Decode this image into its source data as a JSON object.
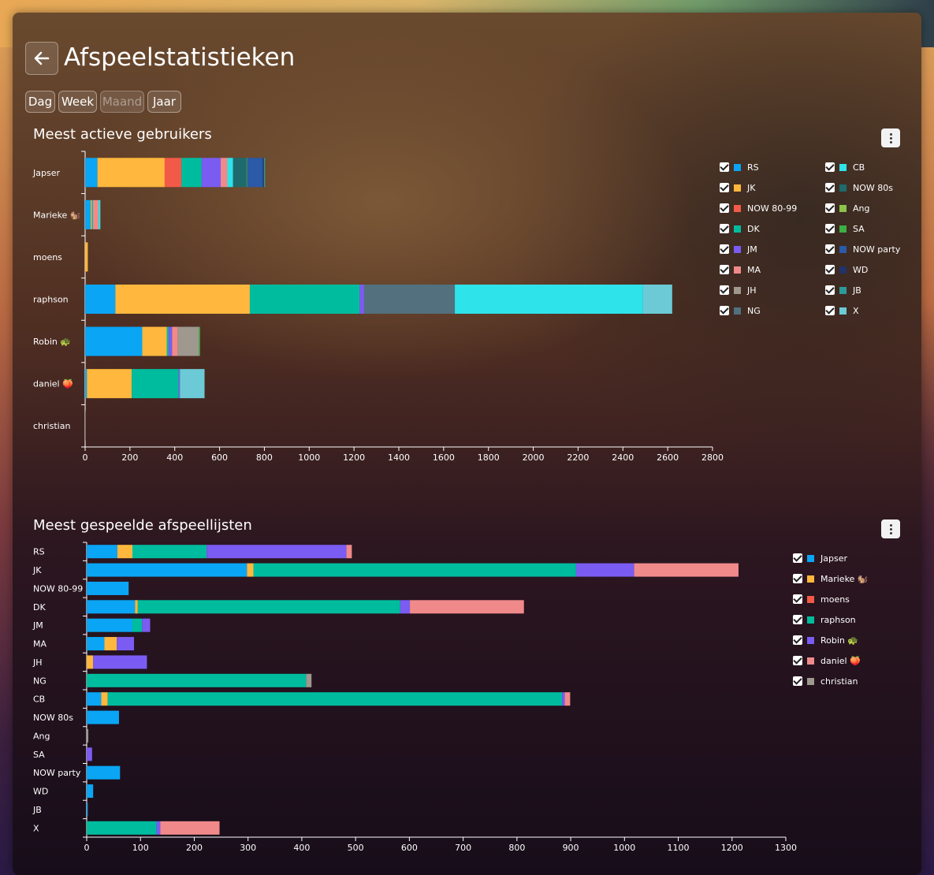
{
  "page": {
    "title": "Afspeelstatistieken"
  },
  "periods": [
    {
      "label": "Dag",
      "disabled": false
    },
    {
      "label": "Week",
      "disabled": false
    },
    {
      "label": "Maand",
      "disabled": true
    },
    {
      "label": "Jaar",
      "disabled": false
    }
  ],
  "chart_data": [
    {
      "type": "bar",
      "orientation": "horizontal",
      "stacked": true,
      "title": "Meest actieve gebruikers",
      "categories": [
        "Japser",
        "Marieke 🐿️",
        "moens",
        "raphson",
        "Robin 🐢",
        "daniel 🍑",
        "christian"
      ],
      "xlim": [
        0,
        2800
      ],
      "xticks": [
        0,
        200,
        400,
        600,
        800,
        1000,
        1200,
        1400,
        1600,
        1800,
        2000,
        2200,
        2400,
        2600,
        2800
      ],
      "legend_position": "right",
      "series": [
        {
          "name": "RS",
          "color": "#0aa5f5",
          "values": [
            55,
            25,
            0,
            135,
            255,
            8,
            0
          ]
        },
        {
          "name": "JK",
          "color": "#ffb83d",
          "values": [
            300,
            5,
            12,
            600,
            110,
            200,
            0
          ]
        },
        {
          "name": "NOW 80-99",
          "color": "#f25a48",
          "values": [
            75,
            0,
            0,
            0,
            0,
            0,
            0
          ]
        },
        {
          "name": "DK",
          "color": "#00bc9e",
          "values": [
            90,
            5,
            0,
            490,
            8,
            210,
            0
          ]
        },
        {
          "name": "JM",
          "color": "#7b5cf2",
          "values": [
            85,
            0,
            0,
            20,
            15,
            5,
            0
          ]
        },
        {
          "name": "MA",
          "color": "#f08a8a",
          "values": [
            30,
            25,
            0,
            0,
            25,
            0,
            0
          ]
        },
        {
          "name": "JH",
          "color": "#9e988e",
          "values": [
            0,
            0,
            0,
            0,
            95,
            0,
            2
          ]
        },
        {
          "name": "NG",
          "color": "#52707e",
          "values": [
            0,
            0,
            0,
            405,
            0,
            0,
            0
          ]
        },
        {
          "name": "CB",
          "color": "#2ee3ea",
          "values": [
            25,
            8,
            0,
            840,
            0,
            0,
            0
          ]
        },
        {
          "name": "NOW 80s",
          "color": "#1e6a6c",
          "values": [
            60,
            0,
            0,
            0,
            0,
            0,
            0
          ]
        },
        {
          "name": "Ang",
          "color": "#8bc34a",
          "values": [
            0,
            0,
            0,
            0,
            0,
            0,
            0
          ]
        },
        {
          "name": "SA",
          "color": "#3cb043",
          "values": [
            3,
            0,
            0,
            0,
            5,
            0,
            0
          ]
        },
        {
          "name": "NOW party",
          "color": "#2a5aa8",
          "values": [
            70,
            0,
            0,
            0,
            0,
            0,
            0
          ]
        },
        {
          "name": "WD",
          "color": "#22326a",
          "values": [
            5,
            0,
            0,
            0,
            0,
            0,
            0
          ]
        },
        {
          "name": "JB",
          "color": "#2a9a9a",
          "values": [
            5,
            0,
            0,
            0,
            0,
            0,
            0
          ]
        },
        {
          "name": "X",
          "color": "#6ccad6",
          "values": [
            0,
            0,
            0,
            130,
            0,
            110,
            0
          ]
        }
      ]
    },
    {
      "type": "bar",
      "orientation": "horizontal",
      "stacked": true,
      "title": "Meest gespeelde afspeellijsten",
      "categories": [
        "RS",
        "JK",
        "NOW 80-99",
        "DK",
        "JM",
        "MA",
        "JH",
        "NG",
        "CB",
        "NOW 80s",
        "Ang",
        "SA",
        "NOW party",
        "WD",
        "JB",
        "X"
      ],
      "xlim": [
        0,
        1300
      ],
      "xticks": [
        0,
        100,
        200,
        300,
        400,
        500,
        600,
        700,
        800,
        900,
        1000,
        1100,
        1200,
        1300
      ],
      "legend_position": "right",
      "series": [
        {
          "name": "Japser",
          "color": "#0aa5f5",
          "values": [
            57,
            298,
            78,
            90,
            85,
            33,
            0,
            0,
            27,
            60,
            0,
            0,
            62,
            12,
            2,
            0
          ]
        },
        {
          "name": "Marieke 🐿️",
          "color": "#ffb83d",
          "values": [
            28,
            12,
            0,
            5,
            0,
            23,
            12,
            0,
            12,
            0,
            0,
            0,
            0,
            0,
            0,
            0
          ]
        },
        {
          "name": "moens",
          "color": "#f25a48",
          "values": [
            0,
            0,
            0,
            0,
            0,
            0,
            0,
            0,
            0,
            0,
            0,
            0,
            0,
            0,
            0,
            0
          ]
        },
        {
          "name": "raphson",
          "color": "#00bc9e",
          "values": [
            138,
            600,
            0,
            488,
            18,
            0,
            0,
            408,
            845,
            0,
            0,
            0,
            0,
            0,
            0,
            130
          ]
        },
        {
          "name": "Robin 🐢",
          "color": "#7b5cf2",
          "values": [
            260,
            108,
            0,
            18,
            15,
            32,
            100,
            0,
            5,
            0,
            0,
            10,
            0,
            0,
            0,
            7
          ]
        },
        {
          "name": "daniel 🍑",
          "color": "#f08a8a",
          "values": [
            10,
            194,
            0,
            212,
            0,
            0,
            0,
            0,
            10,
            0,
            0,
            0,
            0,
            0,
            0,
            110
          ]
        },
        {
          "name": "christian",
          "color": "#9e988e",
          "values": [
            0,
            0,
            0,
            0,
            0,
            0,
            0,
            10,
            0,
            0,
            3,
            0,
            0,
            0,
            0,
            0
          ]
        }
      ]
    }
  ]
}
